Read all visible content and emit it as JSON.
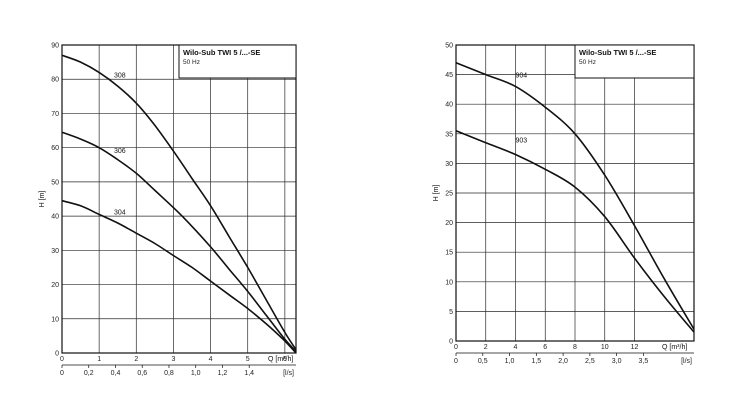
{
  "chart_data": [
    {
      "type": "line",
      "title": "Wilo-Sub TWI 5 /...-SE",
      "subtitle": "50 Hz",
      "ylabel": "H [m]",
      "xlabel_top": "Q [m³/h]",
      "xlabel_bottom": "[l/s]",
      "ylim": [
        0,
        90
      ],
      "xlim": [
        0,
        6.3
      ],
      "yticks": [
        0,
        10,
        20,
        30,
        40,
        50,
        60,
        70,
        80,
        90
      ],
      "xticks_top": [
        0,
        1,
        2,
        3,
        4,
        5,
        6
      ],
      "xticks_bottom_values": [
        0,
        0.2,
        0.4,
        0.6,
        0.8,
        1.0,
        1.2,
        1.4
      ],
      "xticks_bottom_labels": [
        "0",
        "0,2",
        "0,4",
        "0,6",
        "0,8",
        "1,0",
        "1,2",
        "1,4",
        "[l/s]"
      ],
      "series": [
        {
          "name": "308",
          "label_at": [
            1.4,
            80.5
          ],
          "x": [
            0,
            0.5,
            1.0,
            1.5,
            2.0,
            2.5,
            3.0,
            3.5,
            4.0,
            4.5,
            5.0,
            5.5,
            6.0,
            6.3
          ],
          "y": [
            87,
            85,
            82,
            78,
            73,
            66.5,
            59,
            51,
            43,
            34,
            25,
            15.5,
            6,
            1
          ]
        },
        {
          "name": "306",
          "label_at": [
            1.4,
            58.5
          ],
          "x": [
            0,
            0.5,
            1.0,
            1.5,
            2.0,
            2.5,
            3.0,
            3.5,
            4.0,
            4.5,
            5.0,
            5.5,
            6.0,
            6.3
          ],
          "y": [
            64.5,
            62.5,
            60,
            56.5,
            52.5,
            47.5,
            42.5,
            37,
            31,
            24.5,
            18,
            11,
            4,
            0.5
          ]
        },
        {
          "name": "304",
          "label_at": [
            1.4,
            40.5
          ],
          "x": [
            0,
            0.5,
            1.0,
            1.5,
            2.0,
            2.5,
            3.0,
            3.5,
            4.0,
            4.5,
            5.0,
            5.5,
            6.0,
            6.3
          ],
          "y": [
            44.5,
            43,
            40.5,
            38,
            35,
            32,
            28.5,
            25,
            21,
            17,
            13,
            8.5,
            3.5,
            0
          ]
        }
      ]
    },
    {
      "type": "line",
      "title": "Wilo-Sub TWI 5 /...-SE",
      "subtitle": "50 Hz",
      "ylabel": "H [m]",
      "xlabel_top": "Q [m³/h]",
      "xlabel_bottom": "[l/s]",
      "ylim": [
        0,
        50
      ],
      "xlim": [
        0,
        16
      ],
      "yticks": [
        0,
        5,
        10,
        15,
        20,
        25,
        30,
        35,
        40,
        45,
        50
      ],
      "xticks_top": [
        0,
        2,
        4,
        6,
        8,
        10,
        12
      ],
      "xticks_bottom_values": [
        0,
        0.5,
        1.0,
        1.5,
        2.0,
        2.5,
        3.0,
        3.5
      ],
      "xticks_bottom_labels": [
        "0",
        "0,5",
        "1,0",
        "1,5",
        "2,0",
        "2,5",
        "3,0",
        "3,5",
        "[l/s]"
      ],
      "series": [
        {
          "name": "904",
          "label_at": [
            4,
            44.5
          ],
          "x": [
            0,
            2,
            4,
            6,
            8,
            10,
            12,
            14,
            16
          ],
          "y": [
            47,
            45,
            43,
            39.5,
            35,
            28,
            19.5,
            10.5,
            2
          ]
        },
        {
          "name": "903",
          "label_at": [
            4,
            33.5
          ],
          "x": [
            0,
            2,
            4,
            6,
            8,
            10,
            12,
            14,
            16
          ],
          "y": [
            35.5,
            33.5,
            31.5,
            29,
            26,
            21,
            14,
            7.5,
            1.5
          ]
        }
      ]
    }
  ]
}
